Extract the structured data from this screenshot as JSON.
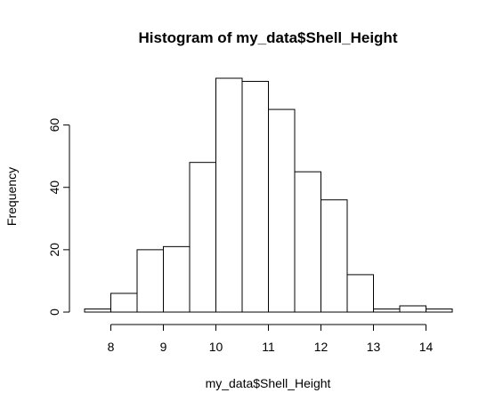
{
  "chart_data": {
    "type": "histogram",
    "title": "Histogram of my_data$Shell_Height",
    "xlabel": "my_data$Shell_Height",
    "ylabel": "Frequency",
    "bin_edges": [
      7.5,
      8.0,
      8.5,
      9.0,
      9.5,
      10.0,
      10.5,
      11.0,
      11.5,
      12.0,
      12.5,
      13.0,
      13.5,
      14.0,
      14.5
    ],
    "values": [
      1,
      6,
      20,
      21,
      48,
      75,
      74,
      65,
      45,
      36,
      12,
      1,
      2,
      1
    ],
    "x_ticks": [
      8,
      9,
      10,
      11,
      12,
      13,
      14
    ],
    "y_ticks": [
      0,
      20,
      40,
      60
    ],
    "xlim": [
      7.5,
      14.5
    ],
    "ylim": [
      0,
      75
    ],
    "grid": false,
    "colors": {
      "bar_fill": "#ffffff",
      "bar_stroke": "#000000"
    }
  }
}
